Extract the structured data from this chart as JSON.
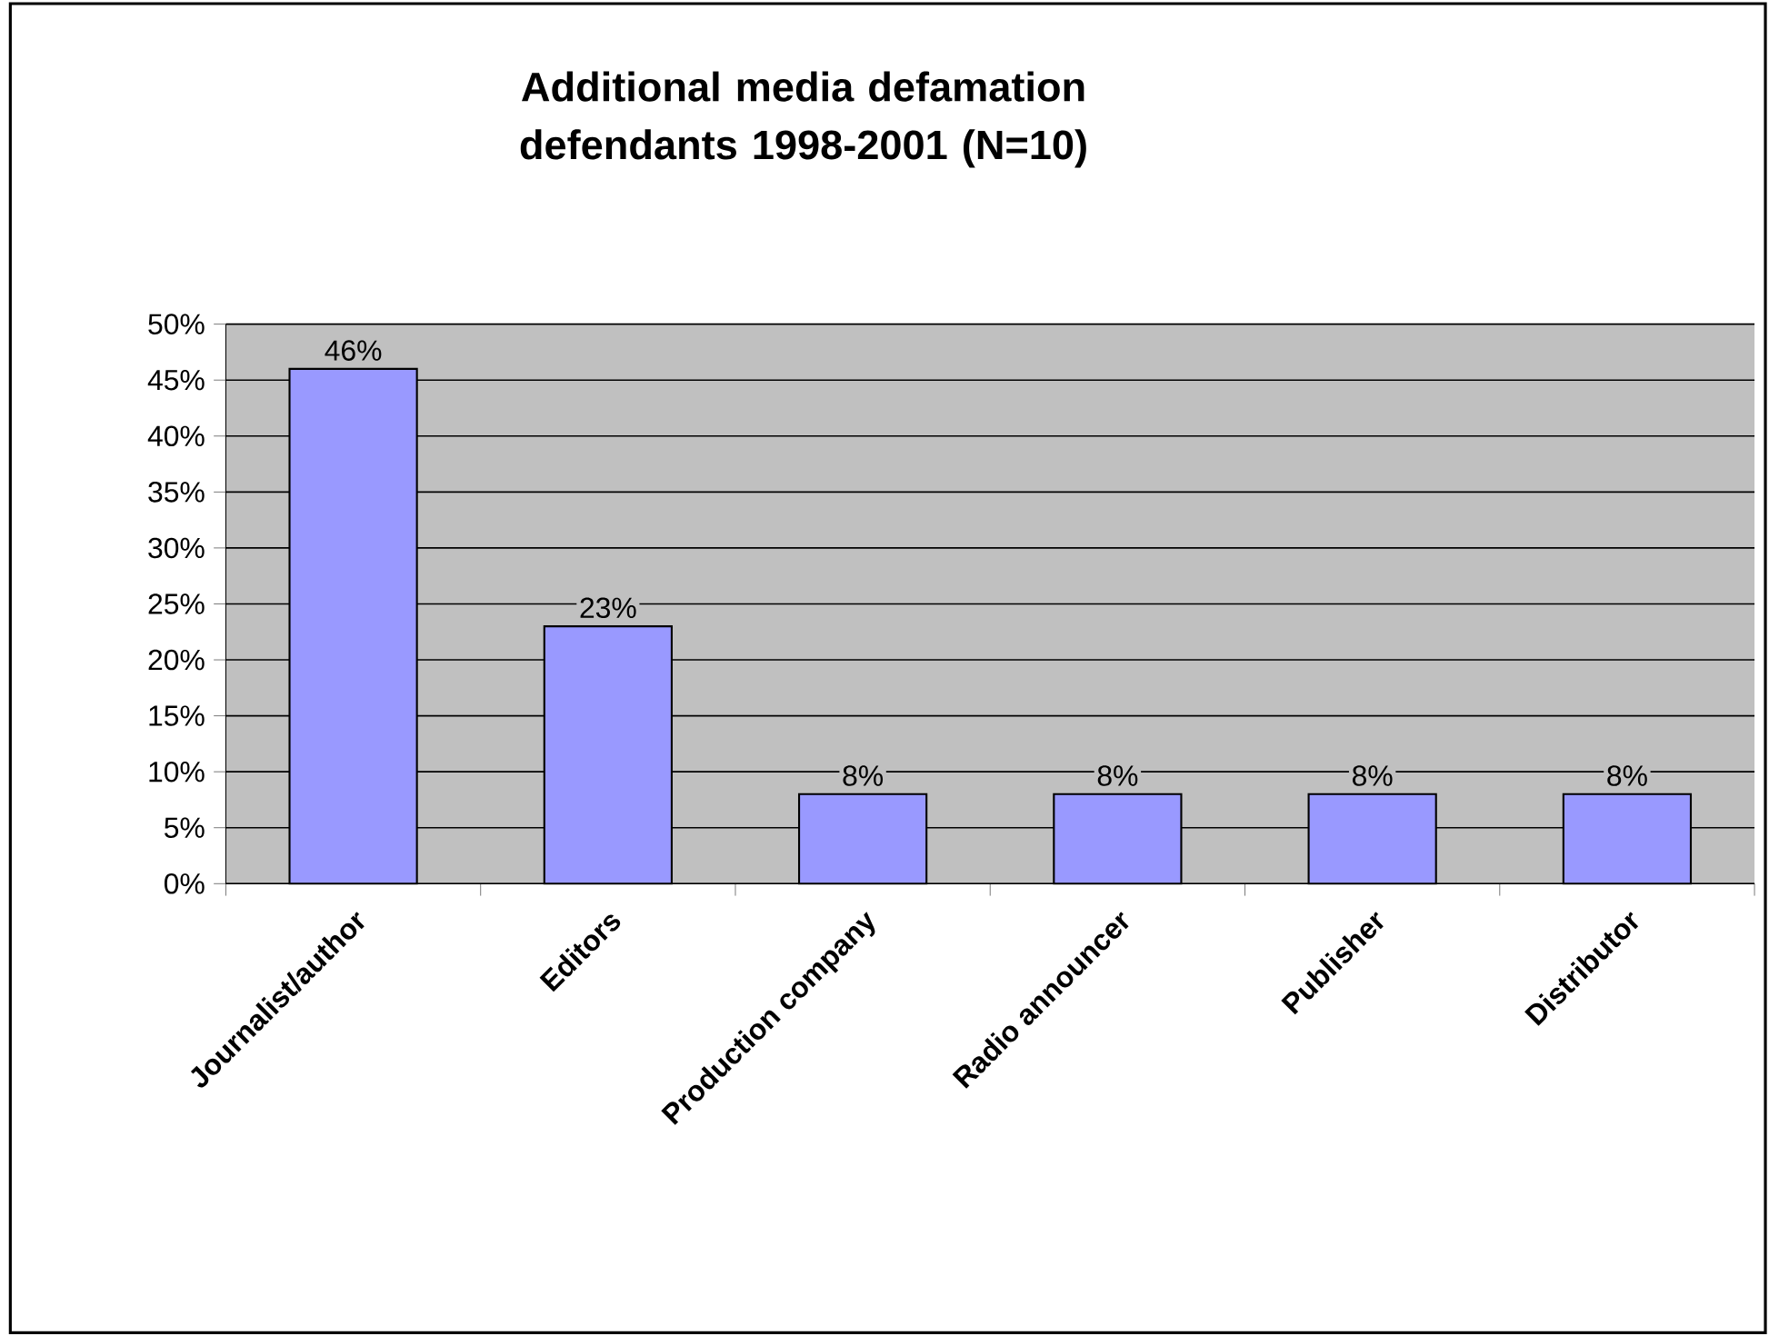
{
  "chart_data": {
    "type": "bar",
    "title": "Additional media defamation defendants 1998-2001 (N=10)",
    "categories": [
      "Journalist/author",
      "Editors",
      "Production company",
      "Radio announcer",
      "Publisher",
      "Distributor"
    ],
    "values": [
      46,
      23,
      8,
      8,
      8,
      8
    ],
    "value_labels": [
      "46%",
      "23%",
      "8%",
      "8%",
      "8%",
      "8%"
    ],
    "color": "#9999ff",
    "ylim": [
      0,
      50
    ],
    "yticks": [
      {
        "value": 0,
        "label": "0%"
      },
      {
        "value": 5,
        "label": "5%"
      },
      {
        "value": 10,
        "label": "10%"
      },
      {
        "value": 15,
        "label": "15%"
      },
      {
        "value": 20,
        "label": "20%"
      },
      {
        "value": 25,
        "label": "25%"
      },
      {
        "value": 30,
        "label": "30%"
      },
      {
        "value": 35,
        "label": "35%"
      },
      {
        "value": 40,
        "label": "40%"
      },
      {
        "value": 45,
        "label": "45%"
      },
      {
        "value": 50,
        "label": "50%"
      }
    ],
    "grid": "y"
  }
}
